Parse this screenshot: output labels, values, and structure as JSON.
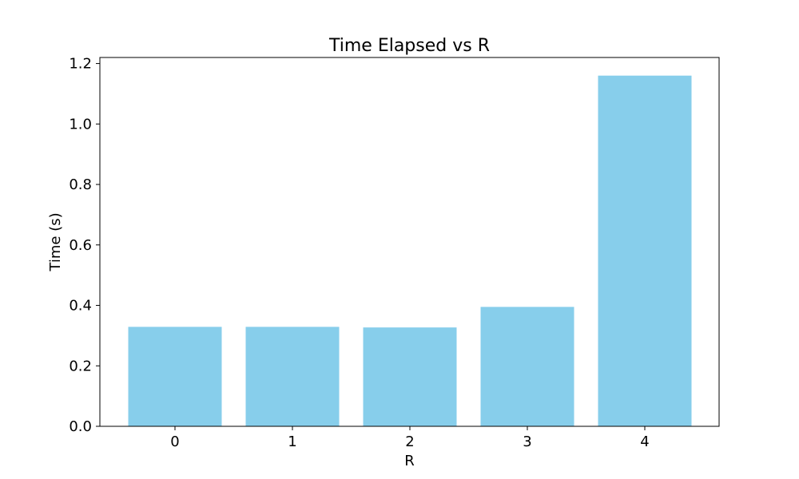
{
  "chart_data": {
    "type": "bar",
    "title": "Time Elapsed vs R",
    "xlabel": "R",
    "ylabel": "Time (s)",
    "categories": [
      "0",
      "1",
      "2",
      "3",
      "4"
    ],
    "values": [
      0.329,
      0.329,
      0.327,
      0.395,
      1.16
    ],
    "ylim": [
      0,
      1.22
    ],
    "yticks": [
      "0.0",
      "0.2",
      "0.4",
      "0.6",
      "0.8",
      "1.0",
      "1.2"
    ],
    "bar_color": "#87CEEB",
    "grid": false,
    "legend": "none"
  }
}
